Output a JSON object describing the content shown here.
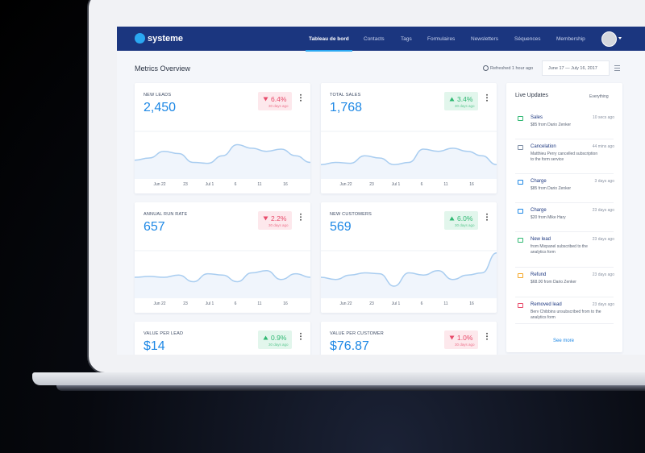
{
  "nav": {
    "brand": "systeme",
    "items": [
      "Tableau de bord",
      "Contacts",
      "Tags",
      "Formulaires",
      "Newsletters",
      "Séquences",
      "Membership"
    ],
    "active": 0
  },
  "header": {
    "title": "Metrics Overview",
    "refreshed": "Refreshed 1 hour ago",
    "date_range": "June 17 — July 16, 2017"
  },
  "chart_x_labels": [
    "Jun 22",
    "23",
    "Jul 1",
    "6",
    "11",
    "16"
  ],
  "cards": [
    {
      "label": "NEW LEADS",
      "value": "2,450",
      "change": "6.4%",
      "direction": "down",
      "period": "30 days ago",
      "trend": [
        35,
        40,
        55,
        50,
        30,
        28,
        45,
        70,
        62,
        55,
        60,
        45,
        30
      ]
    },
    {
      "label": "TOTAL SALES",
      "value": "1,768",
      "change": "3.4%",
      "direction": "up",
      "period": "30 days ago",
      "trend": [
        25,
        30,
        28,
        45,
        40,
        25,
        30,
        60,
        55,
        62,
        55,
        45,
        25
      ]
    },
    {
      "label": "ANNUAL RUN RATE",
      "value": "657",
      "change": "2.2%",
      "direction": "down",
      "period": "30 days ago",
      "trend": [
        40,
        42,
        40,
        45,
        30,
        48,
        45,
        30,
        50,
        55,
        35,
        48,
        40
      ]
    },
    {
      "label": "NEW CUSTOMERS",
      "value": "569",
      "change": "6.0%",
      "direction": "up",
      "period": "30 days ago",
      "trend": [
        40,
        35,
        45,
        50,
        48,
        20,
        50,
        45,
        55,
        35,
        45,
        50,
        95
      ]
    },
    {
      "label": "VALUE PER LEAD",
      "value": "$14",
      "change": "0.9%",
      "direction": "up",
      "period": "30 days ago"
    },
    {
      "label": "VALUE PER CUSTOMER",
      "value": "$76.87",
      "change": "1.0%",
      "direction": "down",
      "period": "30 days ago"
    }
  ],
  "live_updates": {
    "title": "Live Updates",
    "filter": "Everything",
    "items": [
      {
        "title": "Sales",
        "time": "10 secs ago",
        "description": "$85 from Dario Zenker",
        "icon_color": "#2fb872"
      },
      {
        "title": "Cancelation",
        "time": "44 mins ago",
        "description": "Matthieu Perry cancelled subscription to the form service",
        "icon_color": "#7f8fa6"
      },
      {
        "title": "Charge",
        "time": "3 days ago",
        "description": "$85 from Dario Zenker",
        "icon_color": "#1e88e5"
      },
      {
        "title": "Charge",
        "time": "23 days ago",
        "description": "$20 from Mike Hary",
        "icon_color": "#1e88e5"
      },
      {
        "title": "New lead",
        "time": "23 days ago",
        "description": "from Mixpanel subscribed to the analytics form",
        "icon_color": "#2fb872"
      },
      {
        "title": "Refund",
        "time": "23 days ago",
        "description": "$68.00 from Dario Zenker",
        "icon_color": "#f5a623"
      },
      {
        "title": "Removed lead",
        "time": "23 days ago",
        "description": "Berv Chibbins unsubscribed from to the analytics form",
        "icon_color": "#e84a6a"
      }
    ],
    "see_more": "See more"
  }
}
